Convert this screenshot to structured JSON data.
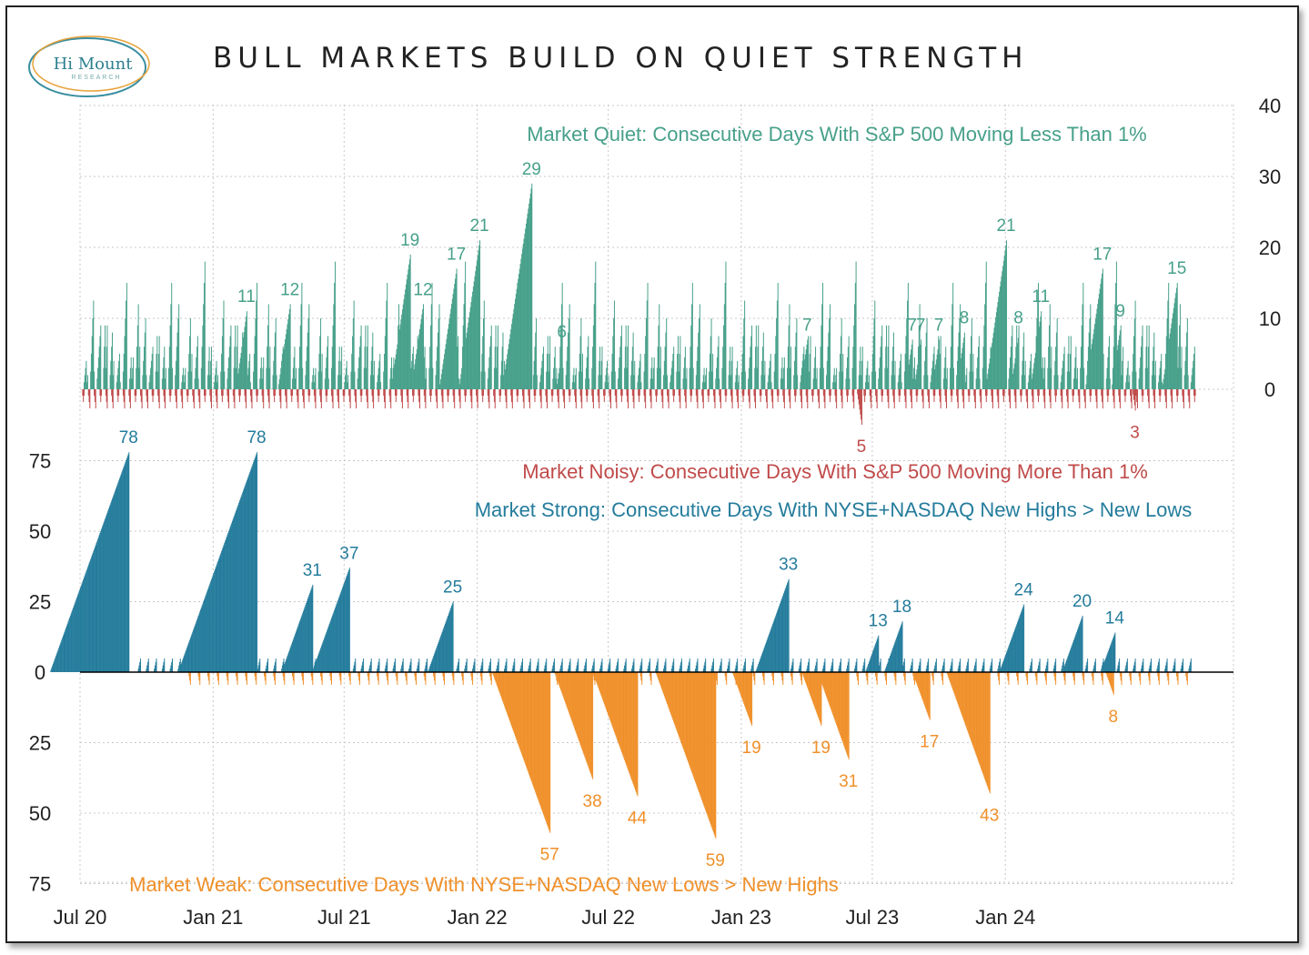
{
  "header": {
    "title": "BULL MARKETS BUILD ON QUIET STRENGTH"
  },
  "logo": {
    "name": "Hi Mount",
    "sub": "RESEARCH",
    "colors": {
      "ring1": "#3a8ea0",
      "ring2": "#e8a23a",
      "text": "#2c7f8f"
    }
  },
  "colors": {
    "quiet": "#47a08a",
    "noisy": "#c04a4a",
    "strong": "#247c9c",
    "weak": "#f0902a",
    "grid": "#c8c8c8"
  },
  "chart_data": [
    {
      "id": "quiet-noisy",
      "type": "bar",
      "y_axis_side": "right",
      "ylim": [
        -7,
        40
      ],
      "yticks": [
        0,
        10,
        20,
        30,
        40
      ],
      "xlim_days": [
        0,
        1485
      ],
      "series": [
        {
          "name": "Market Quiet: Consecutive Days With S&P 500 Moving Less Than 1%",
          "direction": "up",
          "peaks": [
            {
              "day": 230,
              "value": 11,
              "label": "11"
            },
            {
              "day": 290,
              "value": 12,
              "label": "12"
            },
            {
              "day": 456,
              "value": 19,
              "label": "19"
            },
            {
              "day": 474,
              "value": 12,
              "label": "12"
            },
            {
              "day": 520,
              "value": 17,
              "label": "17"
            },
            {
              "day": 552,
              "value": 21,
              "label": "21"
            },
            {
              "day": 624,
              "value": 29,
              "label": "29"
            },
            {
              "day": 666,
              "value": 6,
              "label": "6"
            },
            {
              "day": 1005,
              "value": 7,
              "label": "7"
            },
            {
              "day": 1150,
              "value": 7,
              "label": "7"
            },
            {
              "day": 1162,
              "value": 7,
              "label": "7"
            },
            {
              "day": 1187,
              "value": 7,
              "label": "7"
            },
            {
              "day": 1222,
              "value": 8,
              "label": "8"
            },
            {
              "day": 1280,
              "value": 21,
              "label": "21"
            },
            {
              "day": 1297,
              "value": 8,
              "label": "8"
            },
            {
              "day": 1328,
              "value": 11,
              "label": "11"
            },
            {
              "day": 1413,
              "value": 17,
              "label": "17"
            },
            {
              "day": 1438,
              "value": 9,
              "label": "9"
            },
            {
              "day": 1516,
              "value": 15,
              "label": "15"
            }
          ]
        },
        {
          "name": "Market Noisy: Consecutive Days With S&P 500 Moving More Than 1%",
          "direction": "down",
          "peaks": [
            {
              "day": 1080,
              "value": 5,
              "label": "5"
            },
            {
              "day": 1458,
              "value": 3,
              "label": "3"
            }
          ]
        }
      ]
    },
    {
      "id": "strong-weak",
      "type": "bar",
      "y_axis_side": "left",
      "ylim": [
        -75,
        75
      ],
      "yticks": [
        "75",
        "50",
        "25",
        "0",
        "25",
        "50",
        "75"
      ],
      "x_ticks": [
        "Jul 20",
        "Jan 21",
        "Jul 21",
        "Jan 22",
        "Jul 22",
        "Jan 23",
        "Jul 23",
        "Jan 24"
      ],
      "x_tick_days": [
        0,
        184,
        365,
        549,
        730,
        914,
        1095,
        1279
      ],
      "series": [
        {
          "name": "Market Strong: Consecutive Days With NYSE+NASDAQ New Highs > New Lows",
          "direction": "up",
          "peaks": [
            {
              "day": 67,
              "value": 78,
              "label": "78"
            },
            {
              "day": 244,
              "value": 78,
              "label": "78"
            },
            {
              "day": 321,
              "value": 31,
              "label": "31"
            },
            {
              "day": 372,
              "value": 37,
              "label": "37"
            },
            {
              "day": 515,
              "value": 25,
              "label": "25"
            },
            {
              "day": 979,
              "value": 33,
              "label": "33"
            },
            {
              "day": 1103,
              "value": 13,
              "label": "13"
            },
            {
              "day": 1136,
              "value": 18,
              "label": "18"
            },
            {
              "day": 1304,
              "value": 24,
              "label": "24"
            },
            {
              "day": 1385,
              "value": 20,
              "label": "20"
            },
            {
              "day": 1430,
              "value": 14,
              "label": "14"
            }
          ]
        },
        {
          "name": "Market Weak: Consecutive Days With NYSE+NASDAQ New Lows > New Highs",
          "direction": "down",
          "peaks": [
            {
              "day": 649,
              "value": 57,
              "label": "57"
            },
            {
              "day": 708,
              "value": 38,
              "label": "38"
            },
            {
              "day": 770,
              "value": 44,
              "label": "44"
            },
            {
              "day": 878,
              "value": 59,
              "label": "59"
            },
            {
              "day": 928,
              "value": 19,
              "label": "19"
            },
            {
              "day": 1024,
              "value": 19,
              "label": "19"
            },
            {
              "day": 1062,
              "value": 31,
              "label": "31"
            },
            {
              "day": 1174,
              "value": 17,
              "label": "17"
            },
            {
              "day": 1257,
              "value": 43,
              "label": "43"
            },
            {
              "day": 1428,
              "value": 8,
              "label": "8"
            }
          ]
        }
      ]
    }
  ]
}
